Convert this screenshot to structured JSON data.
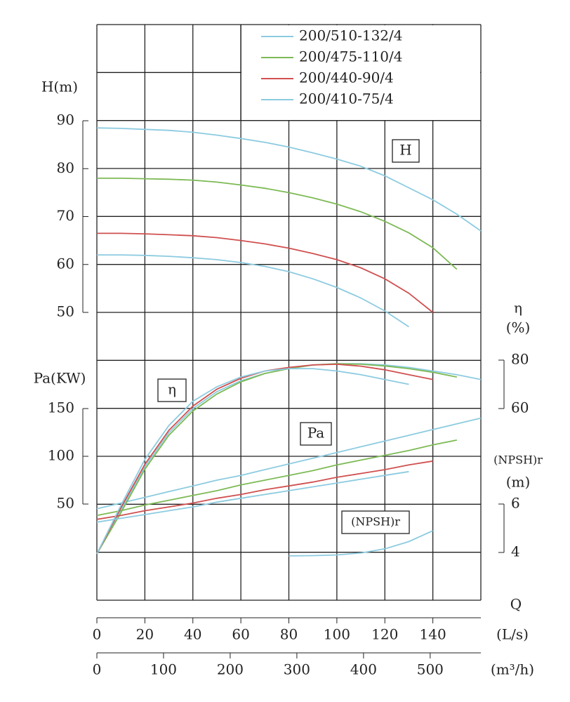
{
  "chart_data": {
    "type": "line",
    "x_title": "Q",
    "x": [
      0,
      10,
      20,
      30,
      40,
      50,
      60,
      70,
      80,
      90,
      100,
      110,
      120,
      130,
      140,
      150,
      160
    ],
    "xlim": [
      0,
      160
    ],
    "xticks": [
      0,
      20,
      40,
      60,
      80,
      100,
      120,
      140
    ],
    "x_unit": "(L/s)",
    "x2": {
      "unit": "(m³/h)",
      "xlim": [
        0,
        576
      ],
      "xticks": [
        0,
        100,
        200,
        300,
        400,
        500
      ]
    },
    "axes": {
      "H": {
        "title": "H(m)",
        "ylim": [
          50,
          90
        ],
        "yticks": [
          50,
          60,
          70,
          80,
          90
        ],
        "box_label": "H"
      },
      "eta": {
        "title": "η",
        "unit": "(%)",
        "ylim": [
          60,
          80
        ],
        "yticks": [
          60,
          80
        ],
        "box_label": "η"
      },
      "Pa": {
        "title": "Pa(KW)",
        "ylim": [
          50,
          150
        ],
        "yticks": [
          50,
          100,
          150
        ],
        "box_label": "Pa"
      },
      "NPSH": {
        "title": "(NPSH)r",
        "unit": "(m)",
        "ylim": [
          4,
          6
        ],
        "yticks": [
          4,
          6
        ],
        "box_label": "(NPSH)r"
      }
    },
    "grid": true,
    "series": [
      {
        "name": "200/510-132/4",
        "color": "#8ccbe0",
        "H": [
          88.5,
          88.4,
          88.2,
          88,
          87.6,
          87,
          86.3,
          85.5,
          84.5,
          83.3,
          82,
          80.5,
          78.5,
          76,
          73.5,
          70.5,
          67
        ],
        "eta": [
          0,
          18,
          36,
          50,
          60,
          67,
          71.5,
          74.5,
          76.5,
          78,
          78.5,
          78.5,
          78,
          77,
          75.5,
          74,
          72
        ],
        "Pa": [
          45,
          51,
          57,
          63,
          69,
          75,
          80,
          86,
          92,
          98,
          104,
          110,
          116,
          122,
          128,
          134,
          140
        ]
      },
      {
        "name": "200/475-110/4",
        "color": "#7dba55",
        "H": [
          78,
          78,
          77.9,
          77.8,
          77.6,
          77.2,
          76.6,
          75.9,
          75,
          73.9,
          72.6,
          71,
          69,
          66.6,
          63.5,
          59,
          null
        ],
        "eta": [
          0,
          17,
          35,
          49,
          59,
          66,
          71,
          74.5,
          76.5,
          78,
          78.5,
          78.3,
          77.6,
          76.5,
          75,
          73,
          null
        ],
        "Pa": [
          38,
          43,
          49,
          54,
          59,
          64,
          70,
          75,
          80,
          85,
          91,
          96,
          101,
          106,
          112,
          117,
          null
        ]
      },
      {
        "name": "200/440-90/4",
        "color": "#d05050",
        "H": [
          66.5,
          66.5,
          66.4,
          66.2,
          66,
          65.6,
          65,
          64.3,
          63.4,
          62.3,
          61,
          59.3,
          57,
          54,
          50,
          null,
          null
        ],
        "eta": [
          0,
          19,
          37,
          51,
          61,
          68,
          72.5,
          75.5,
          77,
          78,
          78.3,
          77.5,
          76,
          74,
          72,
          null,
          null
        ],
        "Pa": [
          34,
          38,
          43,
          47,
          51,
          56,
          60,
          65,
          69,
          73,
          78,
          82,
          86,
          91,
          95,
          null,
          null
        ]
      },
      {
        "name": "200/410-75/4",
        "color": "#8ccbe0",
        "H": [
          62,
          62,
          61.9,
          61.7,
          61.4,
          61,
          60.4,
          59.6,
          58.5,
          57,
          55.2,
          53,
          50.3,
          47,
          null,
          null,
          null
        ],
        "eta": [
          0,
          20,
          39,
          53,
          63,
          69,
          73,
          75.5,
          76.5,
          76.5,
          75.5,
          74,
          72,
          70,
          null,
          null,
          null
        ],
        "Pa": [
          31,
          35,
          39,
          43,
          47,
          52,
          56,
          60,
          64,
          68,
          72,
          76,
          80,
          84,
          null,
          null,
          null
        ]
      }
    ],
    "npsh_curve": {
      "color": "#8ccbe0",
      "values": [
        null,
        null,
        null,
        null,
        null,
        null,
        null,
        null,
        3.86,
        3.87,
        3.9,
        3.98,
        4.15,
        4.45,
        4.9,
        null,
        null
      ]
    }
  }
}
